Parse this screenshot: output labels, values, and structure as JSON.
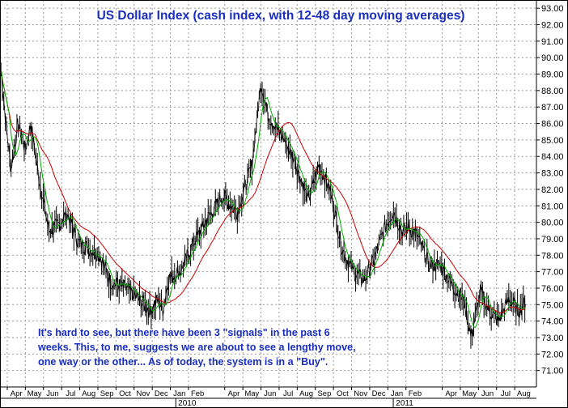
{
  "chart_data": {
    "type": "line",
    "title": "US Dollar Index (cash index, with 12-48 day moving averages)",
    "annotation": [
      "It's hard to see, but there have been 3 \"signals\" in the past 6",
      "weeks. This, to me, suggests we are about to see a lengthy move,",
      "one way or the other... As of today, the system is in a \"Buy\"."
    ],
    "ylim": [
      70,
      93.5
    ],
    "y_ticks": [
      "71.00",
      "72.00",
      "73.00",
      "74.00",
      "75.00",
      "76.00",
      "77.00",
      "78.00",
      "79.00",
      "80.00",
      "81.00",
      "82.00",
      "83.00",
      "84.00",
      "85.00",
      "86.00",
      "87.00",
      "88.00",
      "89.00",
      "90.00",
      "91.00",
      "92.00",
      "93.00"
    ],
    "x_month_labels": [
      "Apr",
      "May",
      "Jun",
      "Jul",
      "Aug",
      "Sep",
      "Oct",
      "Nov",
      "Dec",
      "Jan",
      "Feb",
      "Apr",
      "May",
      "Jun",
      "Jul",
      "Aug",
      "Sep",
      "Oct",
      "Nov",
      "Dec",
      "Jan",
      "Feb",
      "Apr",
      "May",
      "Jun",
      "Jul",
      "Aug"
    ],
    "x_month_positions": [
      1.2,
      2.2,
      3.2,
      4.2,
      5.2,
      6.2,
      7.2,
      8.2,
      9.2,
      10.2,
      11.2,
      13.2,
      14.2,
      15.2,
      16.2,
      17.2,
      18.2,
      19.2,
      20.2,
      21.2,
      22.2,
      23.2,
      25.2,
      26.2,
      27.2,
      28.2,
      29.2
    ],
    "x_year_labels": [
      "2010",
      "2011"
    ],
    "x_year_positions": [
      10.0,
      22.0
    ],
    "xlim": [
      0.3,
      29.9
    ],
    "grid": true,
    "colors": {
      "price": "#000000",
      "ma_short": "#00aa00",
      "ma_long": "#cc0000",
      "title": "#1a2fbf",
      "annotation": "#1a2fbf",
      "grid": "#9a9a9a"
    },
    "key_points": {
      "x": [
        0.35,
        0.6,
        0.9,
        1.3,
        1.7,
        2.0,
        2.4,
        3.0,
        3.5,
        4.0,
        4.6,
        5.2,
        5.8,
        6.4,
        7.2,
        8.0,
        8.6,
        9.0,
        9.3,
        9.6,
        10.3,
        11.0,
        11.8,
        12.6,
        13.4,
        14.2,
        14.7,
        15.1,
        15.5,
        16.0,
        16.6,
        17.3,
        17.9,
        18.5,
        19.2,
        19.8,
        20.4,
        20.9,
        21.5,
        22.0,
        22.5,
        22.8,
        23.3,
        24.0,
        24.6,
        25.3,
        25.9,
        26.3,
        26.8,
        27.3,
        27.8,
        28.4,
        28.9,
        29.3
      ],
      "y": [
        89.3,
        86.4,
        83.2,
        86.0,
        84.4,
        86.0,
        83.0,
        79.5,
        79.8,
        80.6,
        78.8,
        78.4,
        78.0,
        76.4,
        76.0,
        75.3,
        74.6,
        75.3,
        74.7,
        76.6,
        77.1,
        78.8,
        80.3,
        81.6,
        80.6,
        83.5,
        88.5,
        86.5,
        85.8,
        85.0,
        83.6,
        81.3,
        83.5,
        82.0,
        78.3,
        77.0,
        76.5,
        77.6,
        79.6,
        80.7,
        79.4,
        79.7,
        79.2,
        77.4,
        77.4,
        76.1,
        75.2,
        73.0,
        75.8,
        74.6,
        74.0,
        75.4,
        74.6,
        75.2
      ]
    }
  }
}
